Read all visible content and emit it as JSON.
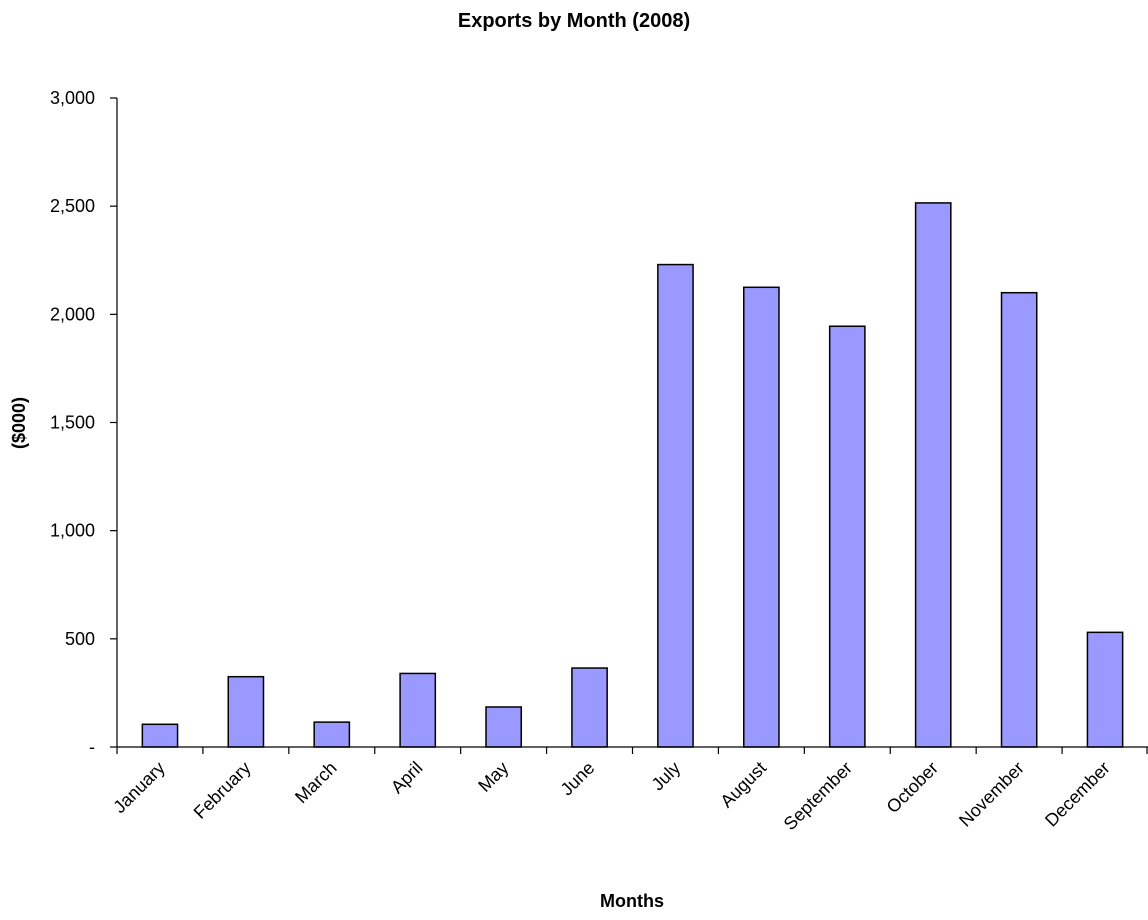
{
  "chart_data": {
    "type": "bar",
    "title": "Exports by Month (2008)",
    "xlabel": "Months",
    "ylabel": "($000)",
    "categories": [
      "January",
      "February",
      "March",
      "April",
      "May",
      "June",
      "July",
      "August",
      "September",
      "October",
      "November",
      "December"
    ],
    "values": [
      105,
      325,
      115,
      340,
      185,
      365,
      2230,
      2125,
      1945,
      2515,
      2100,
      530
    ],
    "ylim": [
      0,
      3000
    ],
    "yticks": [
      0,
      500,
      1000,
      1500,
      2000,
      2500,
      3000
    ],
    "ytick_labels": [
      "-",
      "500",
      "1,000",
      "1,500",
      "2,000",
      "2,500",
      "3,000"
    ],
    "bar_color": "#9999ff",
    "grid": false,
    "legend": "none"
  }
}
